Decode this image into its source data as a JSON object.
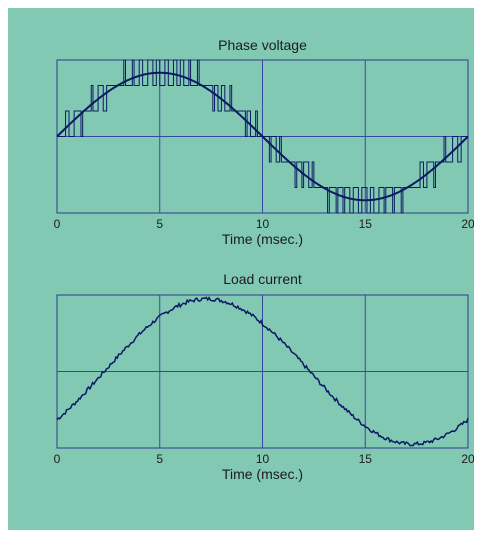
{
  "colors": {
    "background": "#82c9b3",
    "plot_border": "#2e3a8c",
    "grid": "#3a47a0",
    "waveform": "#0c1a63",
    "text": "#1c1c1c"
  },
  "chart_data": [
    {
      "type": "line",
      "title": "Phase voltage",
      "xlabel": "Time (msec.)",
      "ylabel": "",
      "xlim": [
        0,
        20
      ],
      "ylim": [
        -1.2,
        1.2
      ],
      "xticks": [
        0,
        5,
        10,
        15,
        20
      ],
      "xtick_labels": [
        "0",
        "5",
        "10",
        "15",
        "20"
      ],
      "grid": true,
      "series": [
        {
          "style": "smooth-sine",
          "period_ms": 20,
          "phase_ms": 0,
          "amplitude": 1.0
        },
        {
          "style": "pwm-step",
          "carrier_freq_khz": 2.5,
          "levels": [
            -1.2,
            -0.8,
            -0.4,
            0,
            0.4,
            0.8,
            1.2
          ]
        }
      ]
    },
    {
      "type": "line",
      "title": "Load current",
      "xlabel": "Time (msec.)",
      "ylabel": "",
      "xlim": [
        0,
        20
      ],
      "ylim": [
        -1.0,
        1.0
      ],
      "xticks": [
        0,
        5,
        10,
        15,
        20
      ],
      "xtick_labels": [
        "0",
        "5",
        "10",
        "15",
        "20"
      ],
      "grid": true,
      "series": [
        {
          "style": "noisy-sine",
          "period_ms": 20,
          "peak_ms": 7.3,
          "amplitude": 0.95,
          "offset": 0.0
        }
      ]
    }
  ]
}
